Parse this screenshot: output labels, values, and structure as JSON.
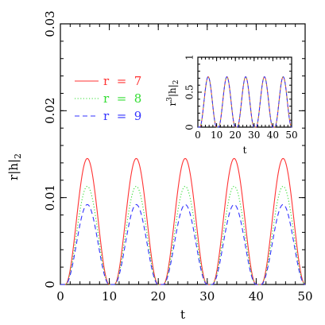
{
  "chart_data": [
    {
      "type": "line",
      "title": "",
      "xlabel": "t",
      "ylabel_main": "r|h|",
      "ylabel_sub": "2",
      "xlim": [
        0,
        50
      ],
      "ylim": [
        0,
        0.03
      ],
      "xticks": [
        "0",
        "10",
        "20",
        "30",
        "40",
        "50"
      ],
      "yticks": [
        "0",
        "0.01",
        "0.02",
        "0.03"
      ],
      "legend_position": "top-left",
      "period": 10,
      "peak_t": [
        5.5,
        15.5,
        25.5,
        35.5,
        45.5
      ],
      "pulse_halfwidth": 4.5,
      "series": [
        {
          "name": "r  =  7",
          "peak": 0.0145,
          "color": "#ff3333",
          "dash": "solid"
        },
        {
          "name": "r  =  8",
          "peak": 0.0113,
          "color": "#33dd33",
          "dash": "dotted"
        },
        {
          "name": "r  =  9",
          "peak": 0.0092,
          "color": "#3333ff",
          "dash": "dashed"
        }
      ]
    },
    {
      "type": "line",
      "title": "",
      "xlabel": "t",
      "ylabel_main": "r",
      "ylabel_sup": "3",
      "ylabel_rest": "|h|",
      "ylabel_sub": "2",
      "xlim": [
        0,
        50
      ],
      "ylim": [
        0,
        1
      ],
      "xticks": [
        "0",
        "10",
        "20",
        "30",
        "40",
        "50"
      ],
      "yticks": [
        "0",
        "0.5",
        "1"
      ],
      "period": 10,
      "peak_t": [
        5.5,
        15.5,
        25.5,
        35.5,
        45.5
      ],
      "pulse_halfwidth": 4.5,
      "series": [
        {
          "peak": 0.72,
          "color": "#ff3333",
          "dash": "solid"
        },
        {
          "peak": 0.72,
          "color": "#33dd33",
          "dash": "dotted"
        },
        {
          "peak": 0.72,
          "color": "#3333ff",
          "dash": "dashed"
        }
      ]
    }
  ]
}
